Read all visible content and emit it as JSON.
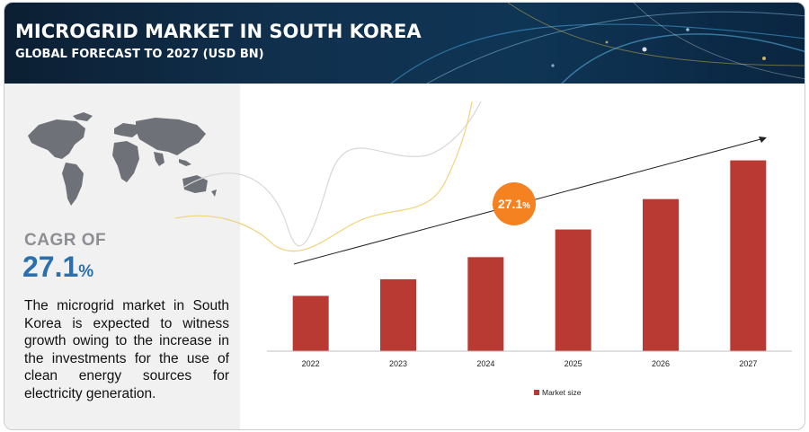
{
  "header": {
    "title": "MICROGRID MARKET IN SOUTH KOREA",
    "subtitle": "GLOBAL FORECAST TO 2027 (USD BN)"
  },
  "sidebar": {
    "map_icon": "world-map-icon",
    "cagr_label": "CAGR OF",
    "cagr_number": "27.1",
    "cagr_unit": "%",
    "description": "The microgrid market in South Korea is expected to witness growth owing to the increase in the investments for the use of clean energy sources for electricity generation."
  },
  "badge": {
    "value": "27.1",
    "unit": "%",
    "color": "#f58220"
  },
  "colors": {
    "bar": "#b93a32",
    "header": "#0f3555",
    "accent": "#2b6fad"
  },
  "chart_data": {
    "type": "bar",
    "categories": [
      "2022",
      "2023",
      "2024",
      "2025",
      "2026",
      "2027"
    ],
    "series": [
      {
        "name": "Market size",
        "values": [
          1.0,
          1.3,
          1.7,
          2.2,
          2.75,
          3.45
        ]
      }
    ],
    "ylim": [
      0,
      3.8
    ],
    "grid": false,
    "legend": "bottom-center",
    "growth_arrow": true
  }
}
